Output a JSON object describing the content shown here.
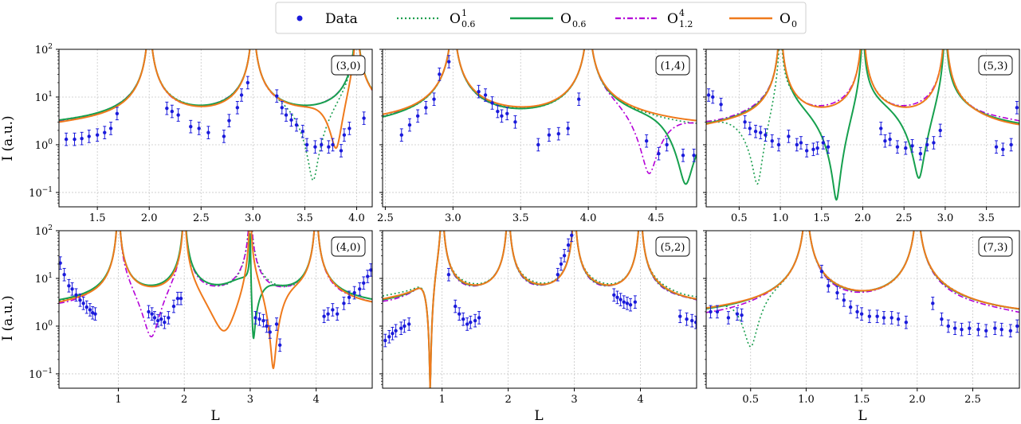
{
  "legend": {
    "entries": [
      {
        "key": "data",
        "label": "Data",
        "sub": "",
        "sup": ""
      },
      {
        "key": "o06_1",
        "label": "O",
        "sub": "0.6",
        "sup": "1"
      },
      {
        "key": "o06",
        "label": "O",
        "sub": "0.6",
        "sup": ""
      },
      {
        "key": "o12_4",
        "label": "O",
        "sub": "1.2",
        "sup": "4"
      },
      {
        "key": "o0",
        "label": "O",
        "sub": "0",
        "sup": ""
      }
    ]
  },
  "styles": {
    "data": {
      "color": "#1a1adb"
    },
    "o06_1": {
      "color": "#1a9e4e",
      "dash": "2,3",
      "width": 1.6
    },
    "o06": {
      "color": "#16a04e",
      "dash": "",
      "width": 2.0
    },
    "o12_4": {
      "color": "#b400d8",
      "dash": "7,3,2,3",
      "width": 1.6
    },
    "o0": {
      "color": "#ef7a1c",
      "dash": "",
      "width": 2.0
    }
  },
  "axes": {
    "xlabel": "L",
    "ylabel": "I (a.u.)",
    "yscale": "log",
    "ylim": [
      0.05,
      100
    ],
    "yticks": [
      {
        "v": 0.1,
        "m": "10",
        "e": "−1"
      },
      {
        "v": 1,
        "m": "10",
        "e": "0"
      },
      {
        "v": 10,
        "m": "10",
        "e": "1"
      },
      {
        "v": 100,
        "m": "10",
        "e": "2"
      }
    ],
    "grid": true
  },
  "chart_data": [
    {
      "type": "line",
      "tag": "(3,0)",
      "xlim": [
        1.13,
        4.15
      ],
      "xticks": [
        1.5,
        2.0,
        2.5,
        3.0,
        3.5,
        4.0
      ],
      "xticklabels": [
        "1.5",
        "2.0",
        "2.5",
        "3.0",
        "3.5",
        "4.0"
      ],
      "peaks": [
        2,
        3,
        4
      ],
      "bases": {
        "o06_1": 1.5,
        "o06": 1.6,
        "o12_4": 1.5,
        "o0": 1.25
      },
      "dips": {
        "o06_1": [
          [
            3.58,
            0.18,
            0.22
          ]
        ],
        "o06": [],
        "o12_4": [],
        "o0": [
          [
            3.8,
            0.85,
            0.15
          ]
        ]
      },
      "data": [
        [
          1.2,
          1.3
        ],
        [
          1.28,
          1.3
        ],
        [
          1.35,
          1.35
        ],
        [
          1.42,
          1.5
        ],
        [
          1.5,
          1.6
        ],
        [
          1.57,
          1.8
        ],
        [
          1.63,
          2.2
        ],
        [
          1.69,
          4.5
        ],
        [
          2.17,
          5.8
        ],
        [
          2.22,
          5.0
        ],
        [
          2.28,
          4.2
        ],
        [
          2.4,
          2.4
        ],
        [
          2.48,
          2.2
        ],
        [
          2.57,
          1.8
        ],
        [
          2.72,
          1.5
        ],
        [
          2.77,
          3.2
        ],
        [
          2.85,
          6.0
        ],
        [
          2.89,
          11
        ],
        [
          2.95,
          20
        ],
        [
          3.23,
          10.5
        ],
        [
          3.28,
          6.0
        ],
        [
          3.32,
          4.2
        ],
        [
          3.37,
          3.3
        ],
        [
          3.42,
          2.6
        ],
        [
          3.48,
          1.9
        ],
        [
          3.52,
          1.0
        ],
        [
          3.6,
          0.9
        ],
        [
          3.66,
          1.0
        ],
        [
          3.73,
          0.9
        ],
        [
          3.77,
          1.0
        ],
        [
          3.85,
          0.75
        ],
        [
          3.88,
          1.6
        ],
        [
          3.93,
          2.2
        ],
        [
          4.07,
          3.6
        ]
      ]
    },
    {
      "type": "line",
      "tag": "(1,4)",
      "xlim": [
        2.48,
        4.8
      ],
      "xticks": [
        2.5,
        3.0,
        3.5,
        4.0,
        4.5
      ],
      "xticklabels": [
        "2.5",
        "3.0",
        "3.5",
        "4.0",
        "4.5"
      ],
      "peaks": [
        3,
        4
      ],
      "bases": {
        "o06_1": 1.3,
        "o06": 1.15,
        "o12_4": 1.2,
        "o0": 1.65
      },
      "dips": {
        "o06_1": [],
        "o06": [
          [
            4.72,
            0.15,
            0.18
          ]
        ],
        "o12_4": [
          [
            4.45,
            0.25,
            0.18
          ]
        ],
        "o0": []
      },
      "data": [
        [
          2.62,
          1.6
        ],
        [
          2.68,
          2.6
        ],
        [
          2.74,
          4.0
        ],
        [
          2.8,
          6.0
        ],
        [
          2.86,
          9.0
        ],
        [
          2.9,
          30
        ],
        [
          2.97,
          55
        ],
        [
          3.19,
          13
        ],
        [
          3.24,
          11
        ],
        [
          3.29,
          7.5
        ],
        [
          3.33,
          5.0
        ],
        [
          3.36,
          4.0
        ],
        [
          3.4,
          4.5
        ],
        [
          3.46,
          3.0
        ],
        [
          3.63,
          1.0
        ],
        [
          3.71,
          1.6
        ],
        [
          3.78,
          1.7
        ],
        [
          3.85,
          2.2
        ],
        [
          3.93,
          9.0
        ],
        [
          4.43,
          1.2
        ],
        [
          4.52,
          0.65
        ],
        [
          4.58,
          1.0
        ],
        [
          4.7,
          0.6
        ],
        [
          4.78,
          0.6
        ]
      ]
    },
    {
      "type": "line",
      "tag": "(5,3)",
      "xlim": [
        0.1,
        3.9
      ],
      "xticks": [
        0.5,
        1.0,
        1.5,
        2.0,
        2.5,
        3.0,
        3.5
      ],
      "xticklabels": [
        "0.5",
        "1.0",
        "1.5",
        "2.0",
        "2.5",
        "3.0",
        "3.5"
      ],
      "peaks": [
        1,
        2,
        3
      ],
      "bases": {
        "o06_1": 1.15,
        "o06": 1.2,
        "o12_4": 1.5,
        "o0": 1.05
      },
      "dips": {
        "o06_1": [
          [
            0.72,
            0.15,
            0.3
          ]
        ],
        "o06": [
          [
            1.68,
            0.07,
            0.35
          ],
          [
            2.68,
            0.2,
            0.3
          ]
        ],
        "o12_4": [],
        "o0": []
      },
      "data": [
        [
          0.13,
          11
        ],
        [
          0.18,
          10
        ],
        [
          0.28,
          7.0
        ],
        [
          0.57,
          3.0
        ],
        [
          0.63,
          2.2
        ],
        [
          0.7,
          1.9
        ],
        [
          0.76,
          1.8
        ],
        [
          0.82,
          1.6
        ],
        [
          0.9,
          1.2
        ],
        [
          0.98,
          1.0
        ],
        [
          1.1,
          1.5
        ],
        [
          1.2,
          1.0
        ],
        [
          1.25,
          1.1
        ],
        [
          1.32,
          0.75
        ],
        [
          1.4,
          0.8
        ],
        [
          1.45,
          0.85
        ],
        [
          1.52,
          1.1
        ],
        [
          1.58,
          0.9
        ],
        [
          2.22,
          2.2
        ],
        [
          2.27,
          1.2
        ],
        [
          2.33,
          1.3
        ],
        [
          2.42,
          0.9
        ],
        [
          2.52,
          0.85
        ],
        [
          2.6,
          0.95
        ],
        [
          2.7,
          0.65
        ],
        [
          2.78,
          1.0
        ],
        [
          2.86,
          1.1
        ],
        [
          2.94,
          2.0
        ],
        [
          3.62,
          0.9
        ],
        [
          3.7,
          0.8
        ],
        [
          3.8,
          1.0
        ],
        [
          3.87,
          6.0
        ]
      ]
    },
    {
      "type": "line",
      "tag": "(4,0)",
      "xlim": [
        0.1,
        4.85
      ],
      "xticks": [
        1,
        2,
        3,
        4
      ],
      "xticklabels": [
        "1",
        "2",
        "3",
        "4"
      ],
      "peaks": [
        1,
        2,
        3,
        4
      ],
      "bases": {
        "o06_1": 1.5,
        "o06": 1.8,
        "o12_4": 1.3,
        "o0": 1.4
      },
      "dips": {
        "o06_1": [],
        "o06": [
          [
            3.05,
            0.55,
            0.2
          ]
        ],
        "o12_4": [
          [
            1.5,
            0.6,
            0.3
          ]
        ],
        "o0": [
          [
            2.6,
            0.8,
            0.45
          ],
          [
            3.35,
            0.13,
            0.22
          ]
        ]
      },
      "data": [
        [
          0.12,
          21
        ],
        [
          0.18,
          12
        ],
        [
          0.25,
          7.0
        ],
        [
          0.3,
          6.0
        ],
        [
          0.36,
          4.5
        ],
        [
          0.42,
          3.5
        ],
        [
          0.47,
          3.0
        ],
        [
          0.52,
          2.5
        ],
        [
          0.57,
          2.2
        ],
        [
          0.61,
          1.9
        ],
        [
          0.65,
          1.8
        ],
        [
          1.46,
          2.0
        ],
        [
          1.51,
          1.8
        ],
        [
          1.55,
          1.5
        ],
        [
          1.6,
          1.3
        ],
        [
          1.65,
          1.4
        ],
        [
          1.7,
          1.2
        ],
        [
          1.76,
          1.5
        ],
        [
          1.84,
          2.6
        ],
        [
          1.9,
          3.8
        ],
        [
          1.95,
          3.8
        ],
        [
          3.08,
          1.5
        ],
        [
          3.14,
          1.4
        ],
        [
          3.2,
          1.3
        ],
        [
          3.25,
          1.0
        ],
        [
          3.3,
          0.75
        ],
        [
          3.4,
          1.1
        ],
        [
          3.45,
          0.4
        ],
        [
          4.12,
          1.6
        ],
        [
          4.18,
          1.8
        ],
        [
          4.25,
          2.2
        ],
        [
          4.32,
          1.8
        ],
        [
          4.42,
          3.0
        ],
        [
          4.5,
          4.0
        ],
        [
          4.58,
          5.0
        ],
        [
          4.66,
          6.0
        ],
        [
          4.72,
          8.0
        ],
        [
          4.78,
          11
        ],
        [
          4.83,
          15
        ]
      ]
    },
    {
      "type": "line",
      "tag": "(5,2)",
      "xlim": [
        0.1,
        4.85
      ],
      "xticks": [
        1,
        2,
        3,
        4
      ],
      "xticklabels": [
        "1",
        "2",
        "3",
        "4"
      ],
      "peaks": [
        1,
        2,
        3,
        4
      ],
      "bases": {
        "o06_1": 2.4,
        "o06": 1.8,
        "o12_4": 1.6,
        "o0": 1.9
      },
      "dips": {
        "o06_1": [
          [
            0.82,
            0.1,
            0.1
          ]
        ],
        "o06": [
          [
            0.82,
            0.05,
            0.1
          ]
        ],
        "o12_4": [
          [
            0.82,
            0.05,
            0.1
          ]
        ],
        "o0": [
          [
            0.82,
            0.05,
            0.1
          ]
        ]
      },
      "data": [
        [
          0.14,
          0.5
        ],
        [
          0.2,
          0.6
        ],
        [
          0.25,
          0.7
        ],
        [
          0.3,
          0.8
        ],
        [
          0.38,
          0.9
        ],
        [
          0.43,
          1.0
        ],
        [
          0.5,
          1.1
        ],
        [
          1.1,
          12
        ],
        [
          1.2,
          2.6
        ],
        [
          1.26,
          1.8
        ],
        [
          1.32,
          1.4
        ],
        [
          1.38,
          1.1
        ],
        [
          1.43,
          1.2
        ],
        [
          1.5,
          1.3
        ],
        [
          1.56,
          1.5
        ],
        [
          2.75,
          12
        ],
        [
          2.8,
          20
        ],
        [
          2.85,
          30
        ],
        [
          2.91,
          50
        ],
        [
          2.96,
          80
        ],
        [
          3.6,
          4.5
        ],
        [
          3.65,
          4.0
        ],
        [
          3.7,
          3.6
        ],
        [
          3.75,
          3.2
        ],
        [
          3.8,
          3.0
        ],
        [
          3.85,
          2.8
        ],
        [
          3.92,
          3.2
        ],
        [
          4.6,
          1.6
        ],
        [
          4.7,
          1.4
        ],
        [
          4.78,
          1.3
        ],
        [
          4.84,
          1.2
        ]
      ]
    },
    {
      "type": "line",
      "tag": "(7,3)",
      "xlim": [
        0.1,
        2.92
      ],
      "xticks": [
        0.5,
        1.0,
        1.5,
        2.0,
        2.5
      ],
      "xticklabels": [
        "0.5",
        "1.0",
        "1.5",
        "2.0",
        "2.5"
      ],
      "peaks": [
        1,
        2
      ],
      "bases": {
        "o06_1": 0.95,
        "o06": 0.9,
        "o12_4": 0.55,
        "o0": 0.95
      },
      "dips": {
        "o06_1": [
          [
            0.5,
            0.37,
            0.15
          ]
        ],
        "o06": [],
        "o12_4": [],
        "o0": []
      },
      "data": [
        [
          0.14,
          2.0
        ],
        [
          0.2,
          2.0
        ],
        [
          0.3,
          1.5
        ],
        [
          0.38,
          1.8
        ],
        [
          0.42,
          1.7
        ],
        [
          1.14,
          14
        ],
        [
          1.2,
          7.0
        ],
        [
          1.28,
          5.0
        ],
        [
          1.34,
          3.5
        ],
        [
          1.4,
          2.5
        ],
        [
          1.46,
          2.0
        ],
        [
          1.5,
          1.8
        ],
        [
          1.57,
          1.6
        ],
        [
          1.64,
          1.6
        ],
        [
          1.7,
          1.5
        ],
        [
          1.77,
          1.5
        ],
        [
          1.83,
          1.4
        ],
        [
          1.9,
          1.2
        ],
        [
          2.14,
          3.0
        ],
        [
          2.22,
          1.4
        ],
        [
          2.28,
          1.0
        ],
        [
          2.34,
          0.9
        ],
        [
          2.4,
          0.85
        ],
        [
          2.47,
          0.9
        ],
        [
          2.55,
          0.85
        ],
        [
          2.62,
          0.8
        ],
        [
          2.7,
          0.9
        ],
        [
          2.76,
          0.85
        ],
        [
          2.84,
          0.8
        ],
        [
          2.9,
          1.0
        ]
      ]
    }
  ]
}
